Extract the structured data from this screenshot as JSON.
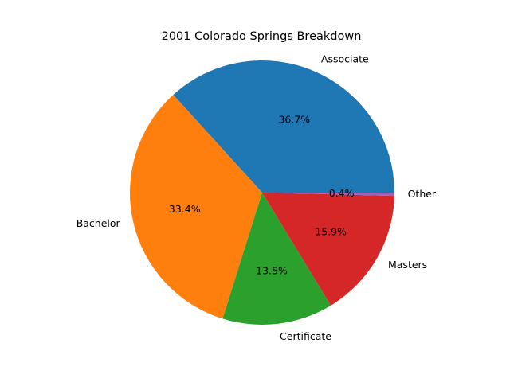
{
  "chart_data": {
    "type": "pie",
    "title": "2001 Colorado Springs Breakdown",
    "categories": [
      "Associate",
      "Bachelor",
      "Certificate",
      "Masters",
      "Other"
    ],
    "values": [
      36.7,
      33.4,
      13.5,
      15.9,
      0.4
    ],
    "value_labels": [
      "36.7%",
      "33.4%",
      "13.5%",
      "15.9%",
      "0.4%"
    ],
    "colors": [
      "#1f77b4",
      "#ff7f0e",
      "#2ca02c",
      "#d62728",
      "#9467bd"
    ],
    "start_angle_deg": 0,
    "direction": "counterclockwise",
    "legend": "none"
  }
}
